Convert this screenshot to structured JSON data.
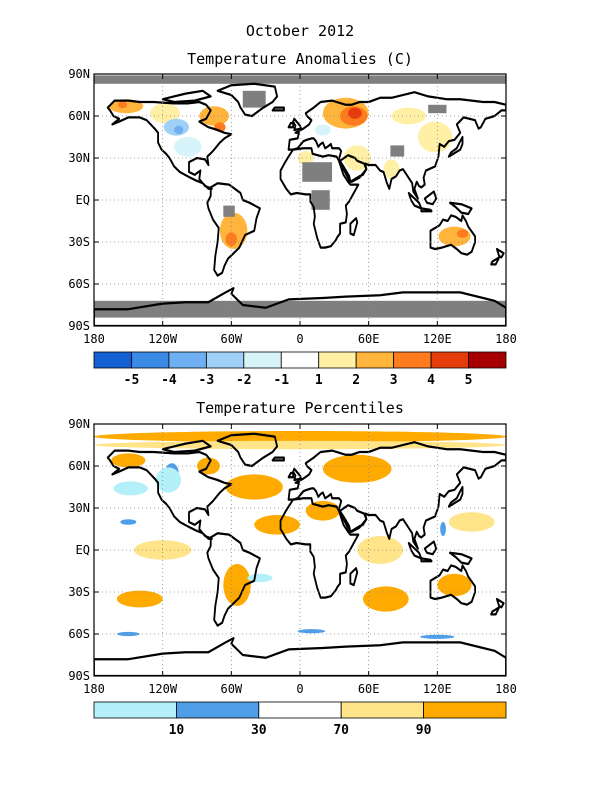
{
  "title": "October 2012",
  "colors": {
    "land_outline": "#000000",
    "missing": "#7f7f7f",
    "grid": "#888888"
  },
  "map_axes": {
    "lon_ticks": [
      "180",
      "120W",
      "60W",
      "0",
      "60E",
      "120E",
      "180"
    ],
    "lat_ticks": [
      "90N",
      "60N",
      "30N",
      "EQ",
      "30S",
      "60S",
      "90S"
    ]
  },
  "panels": [
    {
      "id": "anomaly",
      "subtitle": "Temperature Anomalies (C)",
      "colorbar": {
        "colors": [
          "#1560d2",
          "#3a8ae6",
          "#6fb0f2",
          "#9fd1f7",
          "#d7f4fb",
          "#ffffff",
          "#fff0a6",
          "#ffb43c",
          "#ff7c1e",
          "#e63c0c",
          "#a80000"
        ],
        "labels": [
          "-5",
          "-4",
          "-3",
          "-2",
          "-1",
          "1",
          "2",
          "3",
          "4",
          "5"
        ]
      },
      "regions": [
        {
          "name": "russia-warm-1",
          "color": "#ffb43c",
          "lon": 40,
          "lat": 62,
          "w": 40,
          "h": 22
        },
        {
          "name": "russia-warm-2",
          "color": "#ff7c1e",
          "lon": 47,
          "lat": 60,
          "w": 24,
          "h": 14
        },
        {
          "name": "russia-warm-3",
          "color": "#e63c0c",
          "lon": 48,
          "lat": 62,
          "w": 12,
          "h": 8
        },
        {
          "name": "alaska-warm",
          "color": "#ffb43c",
          "lon": -152,
          "lat": 67,
          "w": 30,
          "h": 10
        },
        {
          "name": "alaska-warm-core",
          "color": "#ff7c1e",
          "lon": -155,
          "lat": 68,
          "w": 8,
          "h": 5
        },
        {
          "name": "nw-canada-warm",
          "color": "#fff0a6",
          "lon": -118,
          "lat": 62,
          "w": 26,
          "h": 14
        },
        {
          "name": "hudson-warm",
          "color": "#ffb43c",
          "lon": -75,
          "lat": 60,
          "w": 26,
          "h": 14
        },
        {
          "name": "quebec-warm",
          "color": "#ff7c1e",
          "lon": -70,
          "lat": 52,
          "w": 10,
          "h": 7
        },
        {
          "name": "china-warm",
          "color": "#fff0a6",
          "lon": 118,
          "lat": 45,
          "w": 30,
          "h": 22
        },
        {
          "name": "siberia-warm",
          "color": "#fff0a6",
          "lon": 95,
          "lat": 60,
          "w": 30,
          "h": 12
        },
        {
          "name": "arabia-warm",
          "color": "#fff0a6",
          "lon": 50,
          "lat": 30,
          "w": 24,
          "h": 18
        },
        {
          "name": "india-warm",
          "color": "#fff0a6",
          "lon": 80,
          "lat": 22,
          "w": 14,
          "h": 14
        },
        {
          "name": "s-america-warm",
          "color": "#ffb43c",
          "lon": -58,
          "lat": -22,
          "w": 24,
          "h": 26
        },
        {
          "name": "s-america-warm-2",
          "color": "#ff7c1e",
          "lon": -60,
          "lat": -28,
          "w": 10,
          "h": 10
        },
        {
          "name": "australia-warm",
          "color": "#ffb43c",
          "lon": 135,
          "lat": -26,
          "w": 28,
          "h": 14
        },
        {
          "name": "australia-hot",
          "color": "#ff7c1e",
          "lon": 142,
          "lat": -24,
          "w": 10,
          "h": 6
        },
        {
          "name": "w-canada-cool",
          "color": "#9fd1f7",
          "lon": -108,
          "lat": 52,
          "w": 22,
          "h": 12
        },
        {
          "name": "w-canada-cold",
          "color": "#6fb0f2",
          "lon": -106,
          "lat": 50,
          "w": 8,
          "h": 6
        },
        {
          "name": "us-cool",
          "color": "#d7f4fb",
          "lon": -98,
          "lat": 38,
          "w": 24,
          "h": 14
        },
        {
          "name": "europe-cool",
          "color": "#d7f4fb",
          "lon": 20,
          "lat": 50,
          "w": 14,
          "h": 8
        },
        {
          "name": "nw-africa-warm",
          "color": "#fff0a6",
          "lon": 5,
          "lat": 30,
          "w": 14,
          "h": 10
        }
      ],
      "missing_regions": [
        {
          "name": "greenland-missing",
          "lon": -40,
          "lat": 72,
          "w": 20,
          "h": 12
        },
        {
          "name": "sahara-missing",
          "lon": 15,
          "lat": 20,
          "w": 26,
          "h": 14
        },
        {
          "name": "central-africa-missing",
          "lon": 18,
          "lat": 0,
          "w": 16,
          "h": 14
        },
        {
          "name": "tibet-missing",
          "lon": 85,
          "lat": 35,
          "w": 12,
          "h": 8
        },
        {
          "name": "siberia-missing",
          "lon": 120,
          "lat": 65,
          "w": 16,
          "h": 6
        },
        {
          "name": "amazon-missing",
          "lon": -62,
          "lat": -8,
          "w": 10,
          "h": 8
        },
        {
          "name": "arctic-band",
          "lon": 0,
          "lat": 86,
          "w": 360,
          "h": 6
        },
        {
          "name": "antarctic-band",
          "lon": 0,
          "lat": -78,
          "w": 360,
          "h": 12
        }
      ]
    },
    {
      "id": "percentile",
      "subtitle": "Temperature Percentiles",
      "colorbar": {
        "colors": [
          "#b4f0fa",
          "#4f9ee8",
          "#ffffff",
          "#ffe48a",
          "#ffaa00"
        ],
        "labels": [
          "10",
          "30",
          "70",
          "90"
        ]
      },
      "regions": [
        {
          "name": "arctic-warm",
          "color": "#ffaa00",
          "lon": 0,
          "lat": 81,
          "w": 360,
          "h": 8
        },
        {
          "name": "arctic-warm-2",
          "color": "#ffe48a",
          "lon": 0,
          "lat": 75,
          "w": 360,
          "h": 6
        },
        {
          "name": "russia-warm",
          "color": "#ffaa00",
          "lon": 50,
          "lat": 58,
          "w": 60,
          "h": 20
        },
        {
          "name": "n-atlantic-warm",
          "color": "#ffaa00",
          "lon": -40,
          "lat": 45,
          "w": 50,
          "h": 18
        },
        {
          "name": "trop-atlantic-warm",
          "color": "#ffaa00",
          "lon": -20,
          "lat": 18,
          "w": 40,
          "h": 14
        },
        {
          "name": "sahara-warm",
          "color": "#ffaa00",
          "lon": 20,
          "lat": 28,
          "w": 30,
          "h": 14
        },
        {
          "name": "indian-ocean-warm",
          "color": "#ffe48a",
          "lon": 70,
          "lat": 0,
          "w": 40,
          "h": 20
        },
        {
          "name": "s-indian-warm",
          "color": "#ffaa00",
          "lon": 75,
          "lat": -35,
          "w": 40,
          "h": 18
        },
        {
          "name": "e-pacific-warm",
          "color": "#ffe48a",
          "lon": -120,
          "lat": 0,
          "w": 50,
          "h": 14
        },
        {
          "name": "s-pacific-warm",
          "color": "#ffaa00",
          "lon": -140,
          "lat": -35,
          "w": 40,
          "h": 12
        },
        {
          "name": "s-america-warm",
          "color": "#ffaa00",
          "lon": -55,
          "lat": -25,
          "w": 24,
          "h": 30
        },
        {
          "name": "australia-warm",
          "color": "#ffaa00",
          "lon": 135,
          "lat": -25,
          "w": 30,
          "h": 16
        },
        {
          "name": "w-pacific-warm",
          "color": "#ffe48a",
          "lon": 150,
          "lat": 20,
          "w": 40,
          "h": 14
        },
        {
          "name": "alaska-warm",
          "color": "#ffaa00",
          "lon": -150,
          "lat": 64,
          "w": 30,
          "h": 10
        },
        {
          "name": "hudson-warm",
          "color": "#ffaa00",
          "lon": -80,
          "lat": 60,
          "w": 20,
          "h": 12
        },
        {
          "name": "n-pacific-cool",
          "color": "#b4f0fa",
          "lon": -148,
          "lat": 44,
          "w": 30,
          "h": 10
        },
        {
          "name": "w-canada-cool",
          "color": "#4f9ee8",
          "lon": -112,
          "lat": 55,
          "w": 12,
          "h": 14
        },
        {
          "name": "w-canada-cool-2",
          "color": "#b4f0fa",
          "lon": -115,
          "lat": 50,
          "w": 22,
          "h": 18
        },
        {
          "name": "pacific-cool-strip",
          "color": "#4f9ee8",
          "lon": -150,
          "lat": 20,
          "w": 14,
          "h": 4
        },
        {
          "name": "trop-atlantic-cool",
          "color": "#b4f0fa",
          "lon": -35,
          "lat": -20,
          "w": 22,
          "h": 6
        },
        {
          "name": "s-ocean-cool-1",
          "color": "#4f9ee8",
          "lon": 10,
          "lat": -58,
          "w": 24,
          "h": 3
        },
        {
          "name": "s-ocean-cool-2",
          "color": "#4f9ee8",
          "lon": 120,
          "lat": -62,
          "w": 30,
          "h": 3
        },
        {
          "name": "s-ocean-cool-3",
          "color": "#4f9ee8",
          "lon": -150,
          "lat": -60,
          "w": 20,
          "h": 3
        },
        {
          "name": "philippine-cool",
          "color": "#4f9ee8",
          "lon": 125,
          "lat": 15,
          "w": 5,
          "h": 10
        }
      ],
      "missing_regions": []
    }
  ]
}
